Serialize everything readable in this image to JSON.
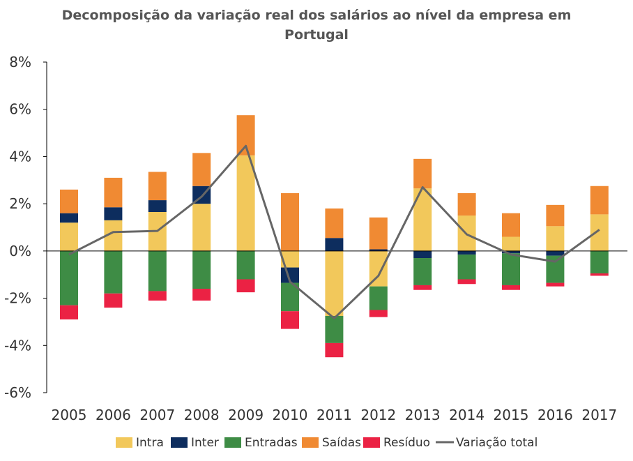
{
  "chart_data": {
    "type": "bar",
    "title_line1": "Decomposição da variação real dos salários ao nível da empresa em",
    "title_line2": "Portugal",
    "categories": [
      "2005",
      "2006",
      "2007",
      "2008",
      "2009",
      "2010",
      "2011",
      "2012",
      "2013",
      "2014",
      "2015",
      "2016",
      "2017"
    ],
    "y_ticks": [
      "8%",
      "6%",
      "4%",
      "2%",
      "0%",
      "-2%",
      "-4%",
      "-6%"
    ],
    "ylim": [
      -6,
      8
    ],
    "stacked": true,
    "series": [
      {
        "name": "Intra",
        "color": "#F2C85B",
        "values": [
          1.2,
          1.3,
          1.65,
          2.0,
          4.05,
          -0.7,
          -2.75,
          -1.5,
          2.65,
          1.5,
          0.6,
          1.05,
          1.55
        ]
      },
      {
        "name": "Inter",
        "color": "#0D2D5E",
        "values": [
          0.4,
          0.55,
          0.5,
          0.75,
          0.0,
          -0.65,
          0.55,
          0.07,
          -0.3,
          -0.15,
          -0.1,
          -0.2,
          0.0
        ]
      },
      {
        "name": "Entradas",
        "color": "#3E8C45",
        "values": [
          -2.3,
          -1.8,
          -1.7,
          -1.6,
          -1.2,
          -1.2,
          -1.15,
          -1.0,
          -1.15,
          -1.05,
          -1.35,
          -1.15,
          -0.95
        ]
      },
      {
        "name": "Saídas",
        "color": "#F08A33",
        "values": [
          1.0,
          1.25,
          1.2,
          1.4,
          1.7,
          2.45,
          1.25,
          1.35,
          1.25,
          0.95,
          1.0,
          0.9,
          1.2
        ]
      },
      {
        "name": "Resíduo",
        "color": "#EB2244",
        "values": [
          -0.6,
          -0.6,
          -0.4,
          -0.5,
          -0.55,
          -0.75,
          -0.6,
          -0.3,
          -0.2,
          -0.2,
          -0.2,
          -0.15,
          -0.1
        ]
      }
    ],
    "line": {
      "name": "Variação total",
      "color": "#666666",
      "values": [
        -0.15,
        0.8,
        0.85,
        2.3,
        4.45,
        -1.3,
        -2.85,
        -1.05,
        2.7,
        0.7,
        -0.15,
        -0.45,
        0.9
      ]
    },
    "legend": [
      "Intra",
      "Inter",
      "Entradas",
      "Saídas",
      "Resíduo",
      "Variação total"
    ]
  }
}
